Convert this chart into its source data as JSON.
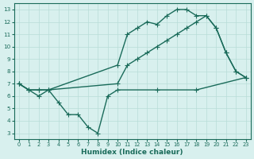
{
  "line1_x": [
    0,
    1,
    2,
    3,
    10,
    11,
    12,
    13,
    14,
    15,
    16,
    17,
    18,
    19,
    20,
    21,
    22,
    23
  ],
  "line1_y": [
    7,
    6.5,
    6.5,
    6.5,
    8.5,
    11,
    11.5,
    12,
    11.8,
    12.5,
    13,
    13,
    12.5,
    12.5,
    11.5,
    9.5,
    8,
    7.5
  ],
  "line2_x": [
    0,
    1,
    2,
    3,
    10,
    11,
    12,
    13,
    14,
    15,
    16,
    17,
    18,
    19,
    20,
    21,
    22,
    23
  ],
  "line2_y": [
    7,
    6.5,
    6.5,
    6.5,
    7.0,
    8.5,
    9.0,
    9.5,
    10.0,
    10.5,
    11.0,
    11.5,
    12.0,
    12.5,
    11.5,
    9.5,
    8,
    7.5
  ],
  "line3_x": [
    0,
    1,
    2,
    3,
    4,
    5,
    6,
    7,
    8,
    9,
    10,
    14,
    18,
    23
  ],
  "line3_y": [
    7,
    6.5,
    6.0,
    6.5,
    5.5,
    4.5,
    4.5,
    3.5,
    3.0,
    6.0,
    6.5,
    6.5,
    6.5,
    7.5
  ],
  "color": "#1a6b5a",
  "bg_color": "#d8f0ee",
  "grid_color": "#b8ddd8",
  "xlabel": "Humidex (Indice chaleur)",
  "xlim": [
    -0.5,
    23.5
  ],
  "ylim": [
    2.5,
    13.5
  ],
  "xticks": [
    0,
    1,
    2,
    3,
    4,
    5,
    6,
    7,
    8,
    9,
    10,
    11,
    12,
    13,
    14,
    15,
    16,
    17,
    18,
    19,
    20,
    21,
    22,
    23
  ],
  "yticks": [
    3,
    4,
    5,
    6,
    7,
    8,
    9,
    10,
    11,
    12,
    13
  ],
  "marker": "+",
  "markersize": 4,
  "linewidth": 1.0
}
